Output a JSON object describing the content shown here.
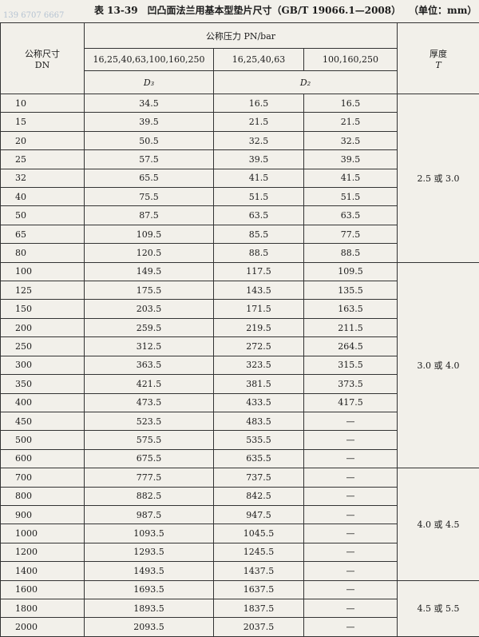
{
  "header": {
    "title": "表 13-39　凹凸面法兰用基本型垫片尺寸（GB/T 19066.1—2008）",
    "unit": "（单位：mm）",
    "watermark": "139 6707 6667"
  },
  "table": {
    "header": {
      "dn_name": "公称尺寸",
      "dn_code": "DN",
      "pressure": "公称压力 PN/bar",
      "pn_d3": "16,25,40,63,100,160,250",
      "pn_d2_low": "16,25,40,63",
      "pn_d2_high": "100,160,250",
      "d3": "D₃",
      "d2": "D₂",
      "thickness_name": "厚度",
      "thickness_code": "T"
    },
    "rows": [
      [
        "10",
        "34.5",
        "16.5",
        "16.5"
      ],
      [
        "15",
        "39.5",
        "21.5",
        "21.5"
      ],
      [
        "20",
        "50.5",
        "32.5",
        "32.5"
      ],
      [
        "25",
        "57.5",
        "39.5",
        "39.5"
      ],
      [
        "32",
        "65.5",
        "41.5",
        "41.5"
      ],
      [
        "40",
        "75.5",
        "51.5",
        "51.5"
      ],
      [
        "50",
        "87.5",
        "63.5",
        "63.5"
      ],
      [
        "65",
        "109.5",
        "85.5",
        "77.5"
      ],
      [
        "80",
        "120.5",
        "88.5",
        "88.5"
      ],
      [
        "100",
        "149.5",
        "117.5",
        "109.5"
      ],
      [
        "125",
        "175.5",
        "143.5",
        "135.5"
      ],
      [
        "150",
        "203.5",
        "171.5",
        "163.5"
      ],
      [
        "200",
        "259.5",
        "219.5",
        "211.5"
      ],
      [
        "250",
        "312.5",
        "272.5",
        "264.5"
      ],
      [
        "300",
        "363.5",
        "323.5",
        "315.5"
      ],
      [
        "350",
        "421.5",
        "381.5",
        "373.5"
      ],
      [
        "400",
        "473.5",
        "433.5",
        "417.5"
      ],
      [
        "450",
        "523.5",
        "483.5",
        "—"
      ],
      [
        "500",
        "575.5",
        "535.5",
        "—"
      ],
      [
        "600",
        "675.5",
        "635.5",
        "—"
      ],
      [
        "700",
        "777.5",
        "737.5",
        "—"
      ],
      [
        "800",
        "882.5",
        "842.5",
        "—"
      ],
      [
        "900",
        "987.5",
        "947.5",
        "—"
      ],
      [
        "1000",
        "1093.5",
        "1045.5",
        "—"
      ],
      [
        "1200",
        "1293.5",
        "1245.5",
        "—"
      ],
      [
        "1400",
        "1493.5",
        "1437.5",
        "—"
      ],
      [
        "1600",
        "1693.5",
        "1637.5",
        "—"
      ],
      [
        "1800",
        "1893.5",
        "1837.5",
        "—"
      ],
      [
        "2000",
        "2093.5",
        "2037.5",
        "—"
      ]
    ],
    "thickness": [
      "2.5 或 3.0",
      "3.0 或 4.0",
      "4.0 或 4.5",
      "4.5 或 5.5"
    ]
  }
}
